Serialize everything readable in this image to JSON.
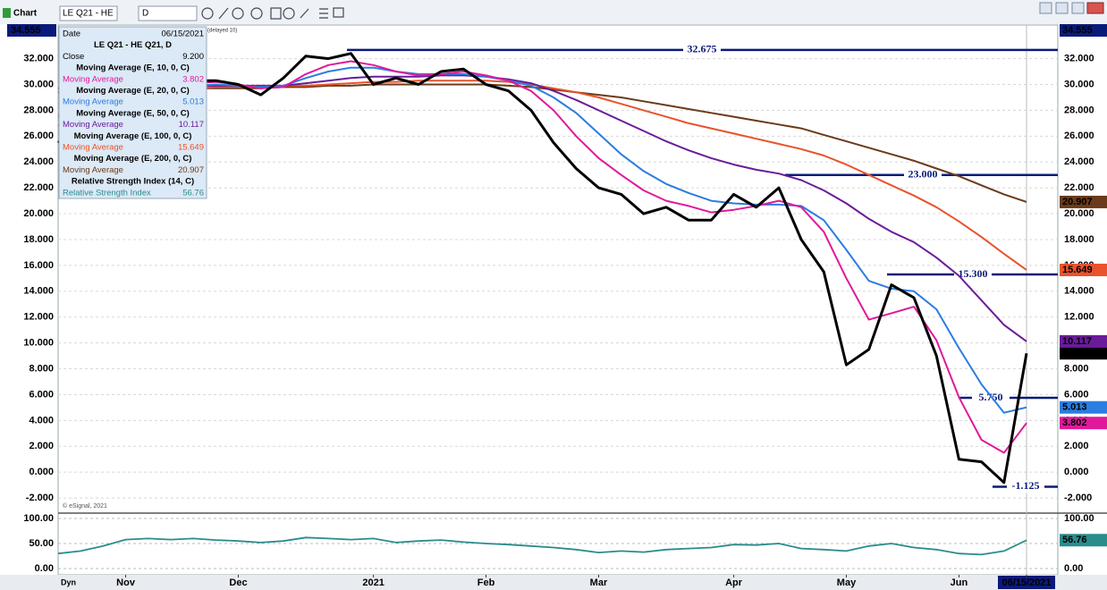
{
  "chart_data": {
    "type": "line",
    "title": "LE Q21 - HE Q21, D",
    "toolbar": {
      "label": "Chart",
      "symbol": "LE Q21 - HE",
      "interval": "D"
    },
    "delay_note": "(delayed 10)",
    "watermark": "© eSignal, 2021",
    "dyn_label": "Dyn",
    "date_label": "Date",
    "top_value": 34.555,
    "x": [
      null,
      null,
      null,
      "Nov",
      null,
      null,
      null,
      null,
      "Dec",
      null,
      null,
      null,
      null,
      null,
      "2021",
      null,
      null,
      null,
      null,
      "Feb",
      null,
      null,
      null,
      null,
      "Mar",
      null,
      null,
      null,
      null,
      null,
      "Apr",
      null,
      null,
      null,
      null,
      "May",
      null,
      null,
      null,
      null,
      "Jun",
      null,
      null,
      "06/15/2021"
    ],
    "ylim": [
      -3.1,
      34.6
    ],
    "yticks": [
      {
        "value": -2,
        "label": "-2.000"
      },
      {
        "value": 0,
        "label": "0.000"
      },
      {
        "value": 2,
        "label": "2.000"
      },
      {
        "value": 4,
        "label": "4.000"
      },
      {
        "value": 6,
        "label": "6.000"
      },
      {
        "value": 8,
        "label": "8.000"
      },
      {
        "value": 10,
        "label": "10.000"
      },
      {
        "value": 12,
        "label": "12.000"
      },
      {
        "value": 14,
        "label": "14.000"
      },
      {
        "value": 16,
        "label": "16.000"
      },
      {
        "value": 18,
        "label": "18.000"
      },
      {
        "value": 20,
        "label": "20.000"
      },
      {
        "value": 22,
        "label": "22.000"
      },
      {
        "value": 24,
        "label": "24.000"
      },
      {
        "value": 26,
        "label": "26.000"
      },
      {
        "value": 28,
        "label": "28.000"
      },
      {
        "value": 30,
        "label": "30.000"
      },
      {
        "value": 32,
        "label": "32.000"
      }
    ],
    "grid": true,
    "series": [
      {
        "name": "Close",
        "color": "#000000",
        "last_label": "9.200",
        "values": [
          25.5,
          27,
          28.5,
          29.5,
          30,
          30.2,
          30.3,
          30.3,
          30.0,
          29.2,
          30.5,
          32.2,
          32.0,
          32.4,
          30,
          30.5,
          30,
          31,
          31.2,
          30,
          29.5,
          28,
          25.5,
          23.5,
          22,
          21.5,
          20,
          20.5,
          19.5,
          19.5,
          21.5,
          20.5,
          22,
          18,
          15.5,
          8.3,
          9.5,
          14.5,
          13.5,
          9,
          1.0,
          0.8,
          -0.8,
          9.2
        ]
      },
      {
        "name": "Moving Average (E, 10, 0, C)",
        "short": "Moving Average",
        "color": "#e0199b",
        "values": [
          26.8,
          27.8,
          28.6,
          29.2,
          29.6,
          29.9,
          30.1,
          30.2,
          30.0,
          29.7,
          29.8,
          30.8,
          31.5,
          31.8,
          31.5,
          31.0,
          30.7,
          30.8,
          31.0,
          30.7,
          30.3,
          29.5,
          28.0,
          26.0,
          24.3,
          23.0,
          21.8,
          21.0,
          20.6,
          20.1,
          20.3,
          20.6,
          21.0,
          20.5,
          18.6,
          15.0,
          11.8,
          12.3,
          12.8,
          10.2,
          5.8,
          2.5,
          1.5,
          3.802
        ]
      },
      {
        "name": "Moving Average (E, 20, 0, C)",
        "short": "Moving Average",
        "color": "#2a7de1",
        "values": [
          27.5,
          28.2,
          28.8,
          29.3,
          29.6,
          29.8,
          29.9,
          30.0,
          29.9,
          29.8,
          29.9,
          30.5,
          31.0,
          31.3,
          31.3,
          31.0,
          30.8,
          30.8,
          30.8,
          30.6,
          30.3,
          29.9,
          29.0,
          27.8,
          26.2,
          24.6,
          23.3,
          22.3,
          21.6,
          21.0,
          20.8,
          20.7,
          20.7,
          20.6,
          19.5,
          17.2,
          14.8,
          14.2,
          14.0,
          12.6,
          9.6,
          6.8,
          4.6,
          5.013
        ]
      },
      {
        "name": "Moving Average (E, 50, 0, C)",
        "short": "Moving Average",
        "color": "#6a1b9a",
        "values": [
          29.7,
          29.8,
          29.9,
          29.9,
          29.9,
          29.9,
          29.9,
          29.9,
          29.9,
          29.9,
          29.9,
          30.1,
          30.3,
          30.5,
          30.6,
          30.6,
          30.6,
          30.7,
          30.7,
          30.6,
          30.4,
          30.1,
          29.5,
          28.8,
          28.0,
          27.2,
          26.4,
          25.6,
          24.9,
          24.3,
          23.8,
          23.4,
          23.1,
          22.6,
          21.8,
          20.8,
          19.6,
          18.6,
          17.8,
          16.6,
          15.2,
          13.3,
          11.4,
          10.117
        ]
      },
      {
        "name": "Moving Average (E, 100, 0, C)",
        "short": "Moving Average",
        "color": "#e8532b",
        "values": [
          27.6,
          28.2,
          28.7,
          29.1,
          29.4,
          29.6,
          29.7,
          29.8,
          29.8,
          29.8,
          29.9,
          29.9,
          30.0,
          30.1,
          30.2,
          30.2,
          30.3,
          30.3,
          30.3,
          30.3,
          30.2,
          30.0,
          29.7,
          29.4,
          29.0,
          28.5,
          28.0,
          27.5,
          27.0,
          26.6,
          26.2,
          25.8,
          25.4,
          25.0,
          24.5,
          23.8,
          23.0,
          22.2,
          21.4,
          20.5,
          19.4,
          18.2,
          16.9,
          15.649
        ]
      },
      {
        "name": "Moving Average (E, 200, 0, C)",
        "short": "Moving Average",
        "color": "#6b3a1a",
        "values": [
          29.4,
          29.5,
          29.5,
          29.6,
          29.6,
          29.7,
          29.7,
          29.7,
          29.7,
          29.7,
          29.8,
          29.8,
          29.9,
          29.9,
          30.0,
          30.0,
          30.0,
          30.0,
          30.0,
          30.0,
          29.9,
          29.8,
          29.6,
          29.4,
          29.2,
          29.0,
          28.7,
          28.4,
          28.1,
          27.8,
          27.5,
          27.2,
          26.9,
          26.6,
          26.1,
          25.6,
          25.1,
          24.6,
          24.1,
          23.5,
          22.9,
          22.2,
          21.5,
          20.907
        ]
      }
    ],
    "levels": [
      {
        "value": 32.675,
        "label": "32.675"
      },
      {
        "value": 23,
        "label": "23.000"
      },
      {
        "value": 15.3,
        "label": "15.300"
      },
      {
        "value": 5.75,
        "label": "5.750"
      },
      {
        "value": -1.125,
        "label": "-1.125"
      }
    ],
    "rsi": {
      "name": "Relative Strength Index (14, C)",
      "short": "Relative Strength Index",
      "color": "#2a8c8c",
      "values": [
        30,
        35,
        45,
        58,
        60,
        58,
        60,
        57,
        55,
        52,
        55,
        62,
        60,
        58,
        60,
        52,
        55,
        57,
        53,
        50,
        48,
        45,
        42,
        38,
        32,
        35,
        33,
        38,
        40,
        42,
        48,
        47,
        50,
        40,
        38,
        35,
        45,
        50,
        42,
        38,
        30,
        28,
        35,
        56.76
      ],
      "ylim": [
        -16,
        109
      ],
      "yticks": [
        {
          "value": 0,
          "label": "0.00"
        },
        {
          "value": 50,
          "label": "50.00"
        },
        {
          "value": 100,
          "label": "100.00"
        }
      ]
    }
  }
}
